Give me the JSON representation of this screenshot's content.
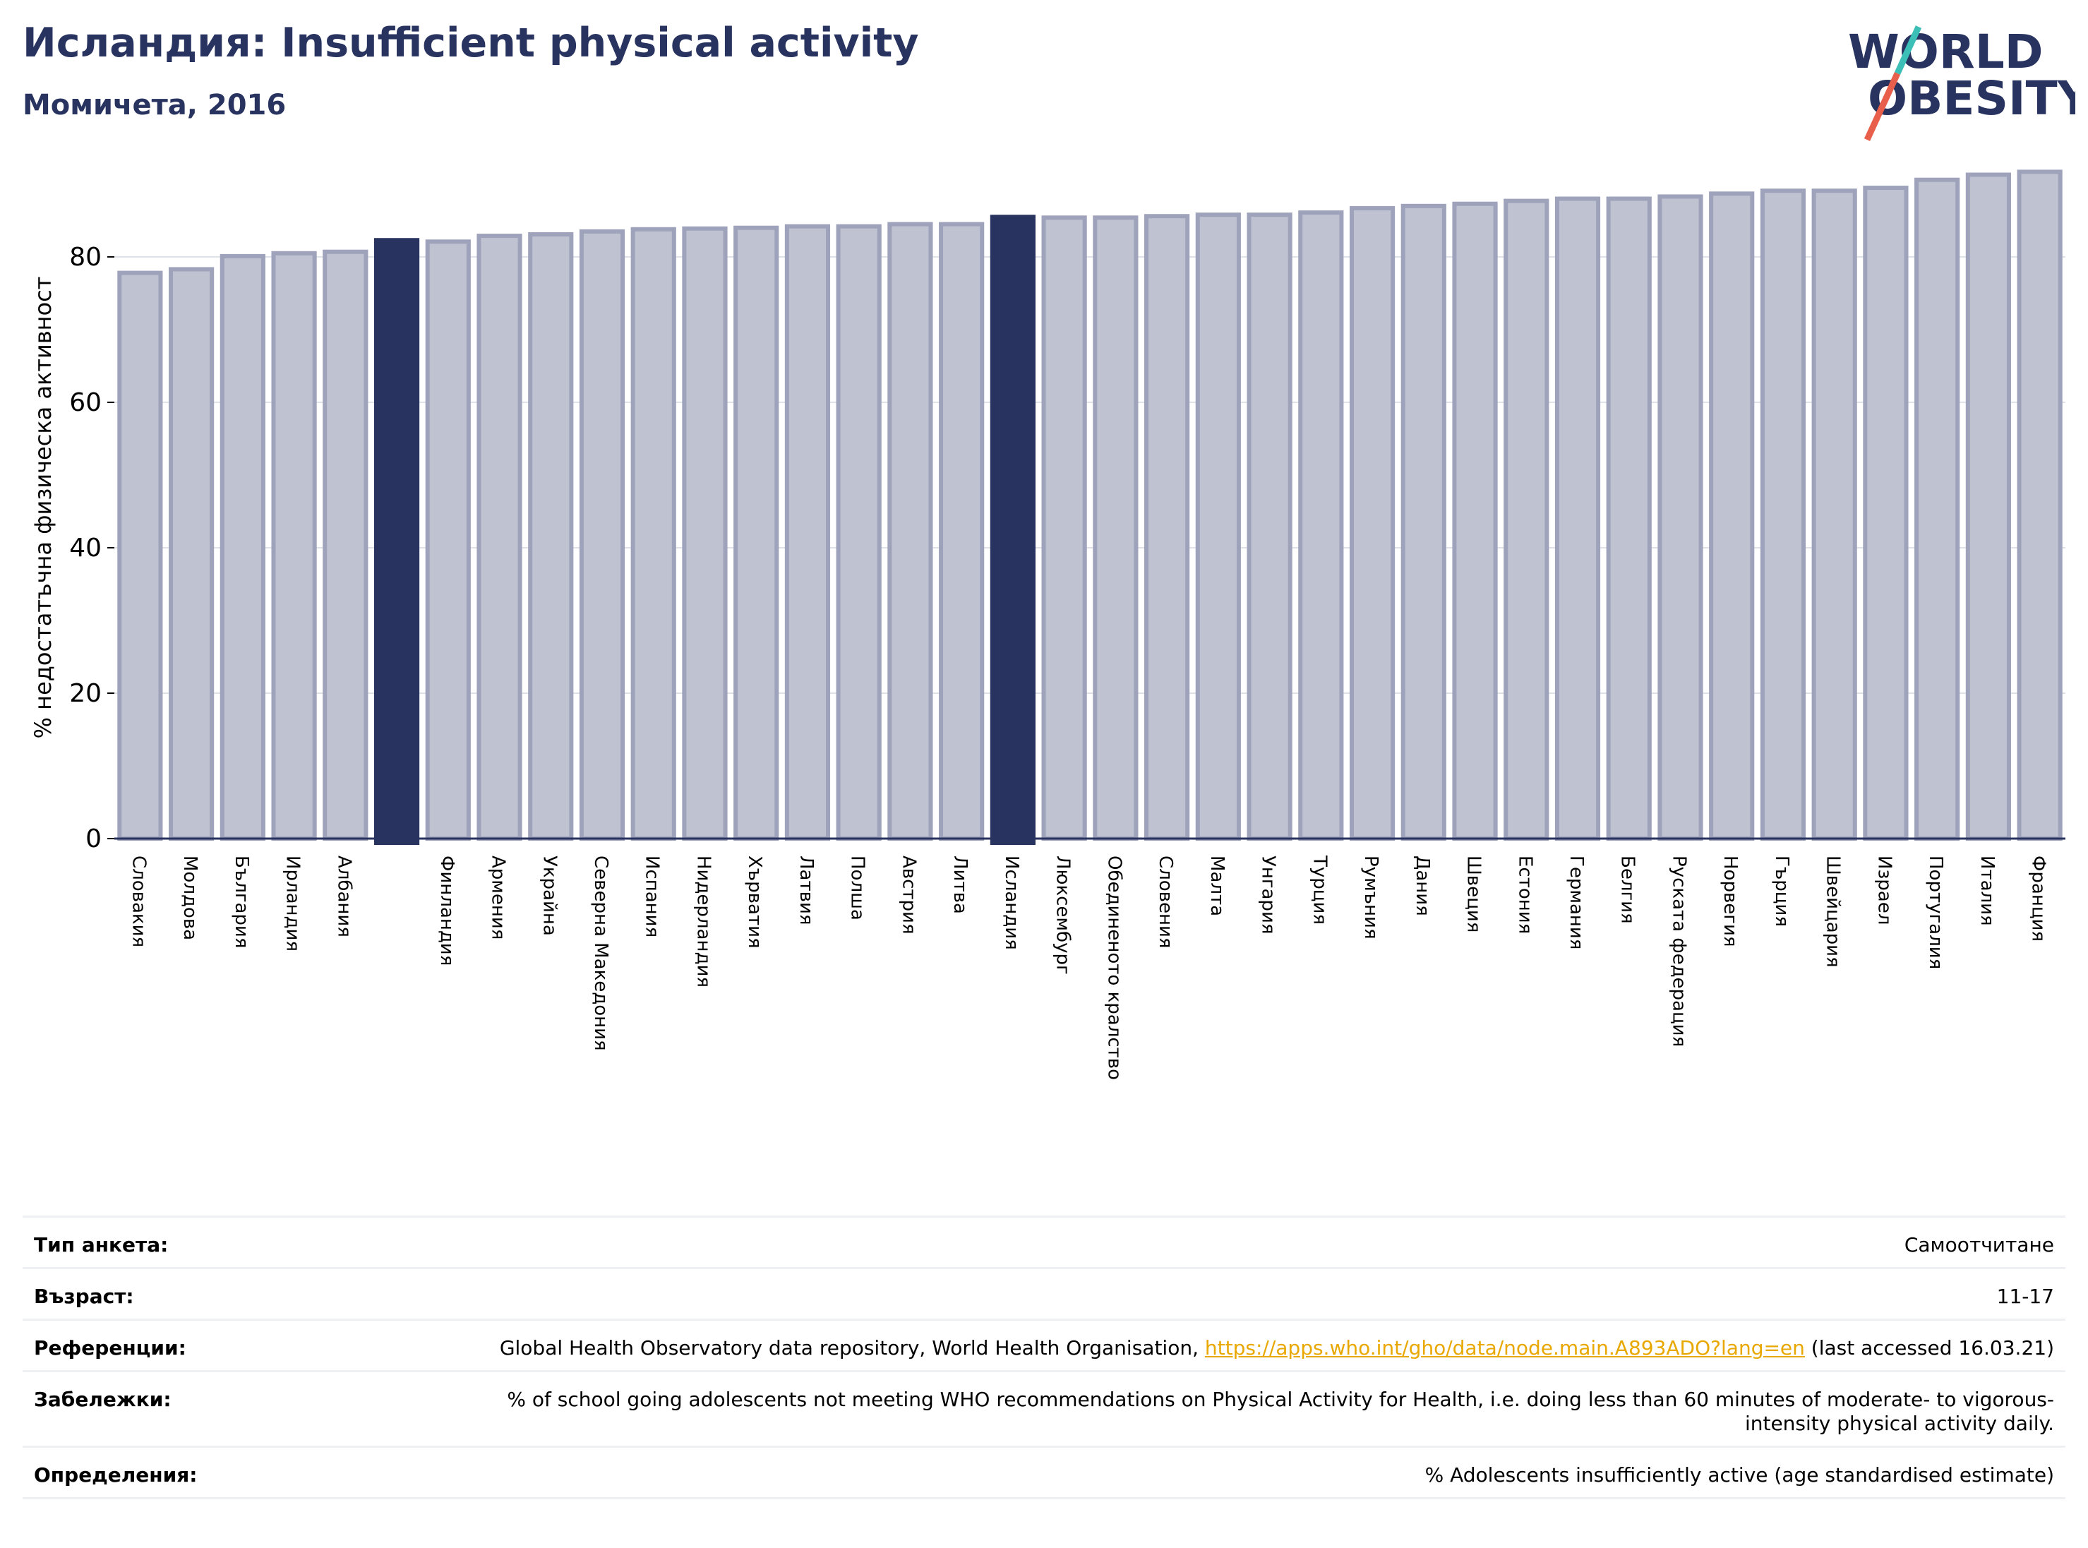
{
  "header": {
    "title": "Исландия: Insufficient physical activity",
    "subtitle": "Момичета, 2016"
  },
  "logo": {
    "line1": "WORLD",
    "line2": "OBESITY"
  },
  "colors": {
    "bar_default": "#bfc2d0",
    "bar_default_edge": "#9ea2ba",
    "bar_highlight": "#28335f",
    "text_dark": "#28335f",
    "link": "#e9a800",
    "logo_teal": "#3bbfb6",
    "logo_red": "#e8604c"
  },
  "chart_data": {
    "type": "bar",
    "ylabel": "% недостатъчна физическа активност",
    "ylim": [
      0,
      93
    ],
    "yticks": [
      0,
      20,
      40,
      60,
      80
    ],
    "grid": true,
    "categories": [
      "Словакия",
      "Молдова",
      "България",
      "Ирландия",
      "Албания",
      "",
      "Финландия",
      "Армения",
      "Украйна",
      "Северна Македония",
      "Испания",
      "Нидерландия",
      "Хърватия",
      "Латвия",
      "Полша",
      "Австрия",
      "Литва",
      "Исландия",
      "Люксембург",
      "Обединеното кралство",
      "Словения",
      "Малта",
      "Унгария",
      "Турция",
      "Румъния",
      "Дания",
      "Швеция",
      "Естония",
      "Германия",
      "Белгия",
      "Руската федерация",
      "Норвегия",
      "Гърция",
      "Швейцария",
      "Израел",
      "Португалия",
      "Италия",
      "Франция"
    ],
    "values": [
      77.8,
      78.3,
      80.1,
      80.5,
      80.7,
      82.3,
      82.1,
      82.9,
      83.1,
      83.5,
      83.8,
      83.9,
      84.0,
      84.2,
      84.2,
      84.5,
      84.5,
      85.5,
      85.4,
      85.4,
      85.6,
      85.8,
      85.8,
      86.1,
      86.7,
      87.0,
      87.3,
      87.7,
      88.0,
      88.0,
      88.3,
      88.7,
      89.1,
      89.1,
      89.5,
      90.6,
      91.3,
      91.7
    ],
    "highlight": [
      5,
      17
    ]
  },
  "info": [
    {
      "label": "Тип анкета:",
      "value": "Самоотчитане"
    },
    {
      "label": "Възраст:",
      "value": "11-17"
    },
    {
      "label": "Референции:",
      "value_prefix": "Global Health Observatory data repository, World Health Organisation, ",
      "link": "https://apps.who.int/gho/data/node.main.A893ADO?lang=en",
      "value_suffix": " (last accessed 16.03.21)"
    },
    {
      "label": "Забележки:",
      "value": "% of school going adolescents not meeting WHO recommendations on Physical Activity for Health, i.e. doing less than 60 minutes of moderate- to vigorous-intensity physical activity daily."
    },
    {
      "label": "Определения:",
      "value": "% Adolescents insufficiently active (age standardised estimate)"
    }
  ]
}
